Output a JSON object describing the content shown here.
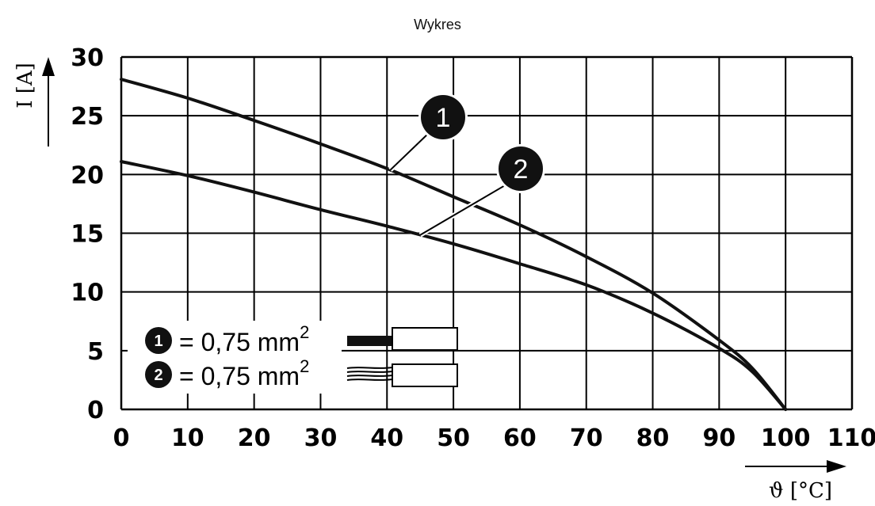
{
  "chart_data": {
    "type": "line",
    "title": "Wykres",
    "xlabel": "ϑ [°C]",
    "ylabel": "I [A]",
    "xlim": [
      0,
      110
    ],
    "ylim": [
      0,
      30
    ],
    "x_ticks": [
      "0",
      "10",
      "20",
      "30",
      "40",
      "50",
      "60",
      "70",
      "80",
      "90",
      "100",
      "110"
    ],
    "y_ticks": [
      "0",
      "5",
      "10",
      "15",
      "20",
      "25",
      "30"
    ],
    "grid": true,
    "series": [
      {
        "marker": "1",
        "x": [
          0,
          10,
          20,
          30,
          40,
          50,
          60,
          70,
          80,
          90,
          95,
          100
        ],
        "y": [
          28.1,
          26.5,
          24.6,
          22.6,
          20.5,
          18.1,
          15.7,
          13.0,
          9.9,
          5.9,
          3.5,
          0
        ]
      },
      {
        "marker": "2",
        "x": [
          0,
          10,
          20,
          30,
          40,
          50,
          60,
          70,
          80,
          90,
          95,
          100
        ],
        "y": [
          21.1,
          19.9,
          18.5,
          17.0,
          15.6,
          14.1,
          12.4,
          10.6,
          8.2,
          5.2,
          3.2,
          0
        ]
      }
    ],
    "legend": [
      {
        "marker": "1",
        "text": "= 0,75 mm",
        "sup": "2",
        "icon": "ferrule-wire-icon"
      },
      {
        "marker": "2",
        "text": "= 0,75 mm",
        "sup": "2",
        "icon": "stranded-wire-icon"
      }
    ],
    "legend_position": "bottom-left",
    "line_color": "#111111"
  }
}
